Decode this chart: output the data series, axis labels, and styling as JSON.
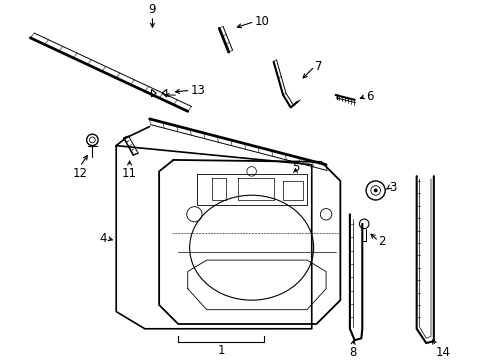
{
  "bg_color": "#ffffff",
  "line_color": "#000000",
  "figsize": [
    4.89,
    3.6
  ],
  "dpi": 100,
  "label_fontsize": 8.5
}
